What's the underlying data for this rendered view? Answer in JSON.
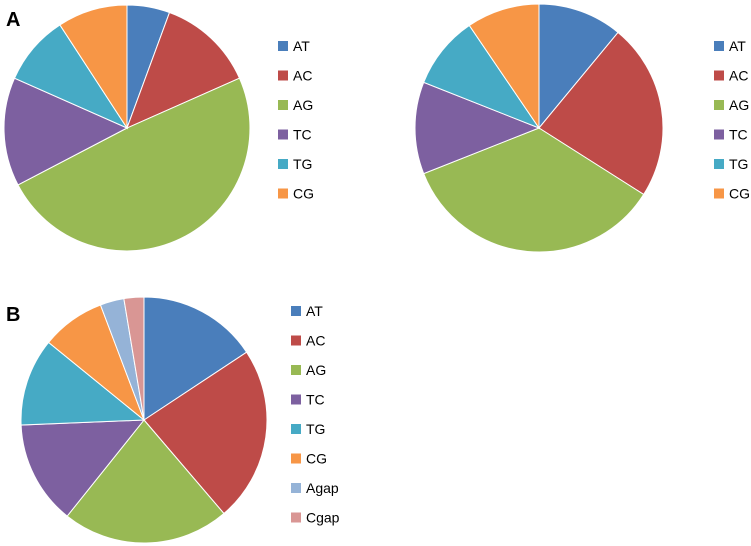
{
  "panels": [
    {
      "label": "A"
    },
    {
      "label": "B"
    }
  ],
  "chart_data": [
    {
      "type": "pie",
      "panel": "A",
      "categories": [
        "AT",
        "AC",
        "AG",
        "TC",
        "TG",
        "CG"
      ],
      "values": [
        5.5,
        12.5,
        48,
        14,
        9,
        9
      ],
      "colors": [
        "#4A7EBB",
        "#BE4B48",
        "#98B954",
        "#7D60A0",
        "#46AAC5",
        "#F79646"
      ],
      "start": "12 o'clock",
      "direction": "clockwise",
      "legend": "right"
    },
    {
      "type": "pie",
      "panel": "",
      "categories": [
        "AT",
        "AC",
        "AG",
        "TC",
        "TG",
        "CG"
      ],
      "values": [
        11,
        23,
        35,
        12,
        9.5,
        9.5
      ],
      "colors": [
        "#4A7EBB",
        "#BE4B48",
        "#98B954",
        "#7D60A0",
        "#46AAC5",
        "#F79646"
      ],
      "start": "12 o'clock",
      "direction": "clockwise",
      "legend": "right"
    },
    {
      "type": "pie",
      "panel": "B",
      "categories": [
        "AT",
        "AC",
        "AG",
        "TC",
        "TG",
        "CG",
        "Agap",
        "Cgap"
      ],
      "values": [
        15,
        22,
        21,
        13,
        11,
        8,
        3,
        2.5
      ],
      "colors": [
        "#4A7EBB",
        "#BE4B48",
        "#98B954",
        "#7D60A0",
        "#46AAC5",
        "#F79646",
        "#95B3D7",
        "#D99694"
      ],
      "start": "12 o'clock",
      "direction": "clockwise",
      "legend": "right"
    }
  ]
}
